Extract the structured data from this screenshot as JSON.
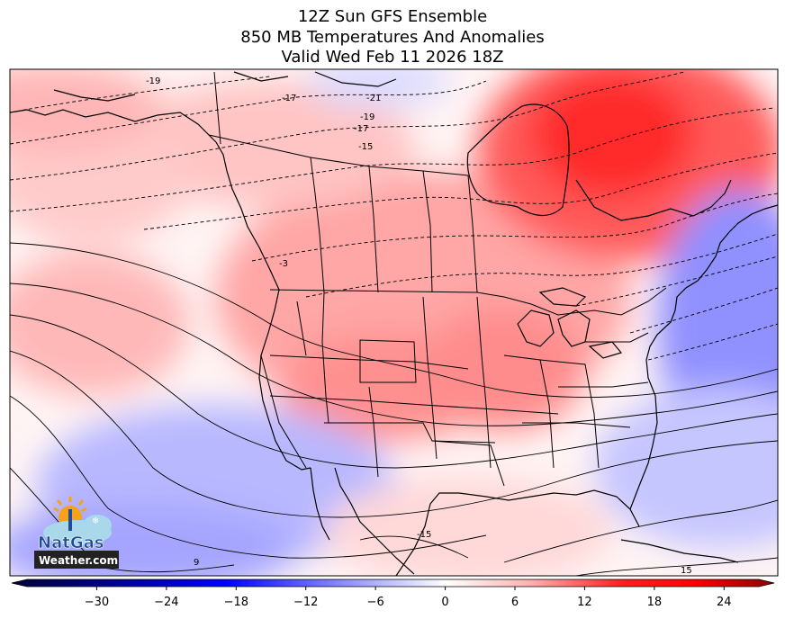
{
  "title": {
    "line1": "12Z Sun GFS Ensemble",
    "line2": "850 MB Temperatures And Anomalies",
    "line3": "Valid Wed Feb 11 2026 18Z"
  },
  "colorbar": {
    "ticks": [
      -30,
      -24,
      -18,
      -12,
      -6,
      0,
      6,
      12,
      18,
      24
    ],
    "range": [
      -36,
      27
    ],
    "colors": {
      "neg_max": "#00003a",
      "neg_mid": "#0000ff",
      "neutral": "#ffffff",
      "pos_mid": "#ff0000",
      "pos_max": "#8b0000"
    }
  },
  "contour_labels": [
    "-19",
    "-17",
    "-21",
    "-19",
    "-17",
    "-15",
    "-3",
    "-15",
    "-15",
    "9",
    "15"
  ],
  "logo": {
    "line1": "NatGas",
    "line2": "Weather.com"
  }
}
